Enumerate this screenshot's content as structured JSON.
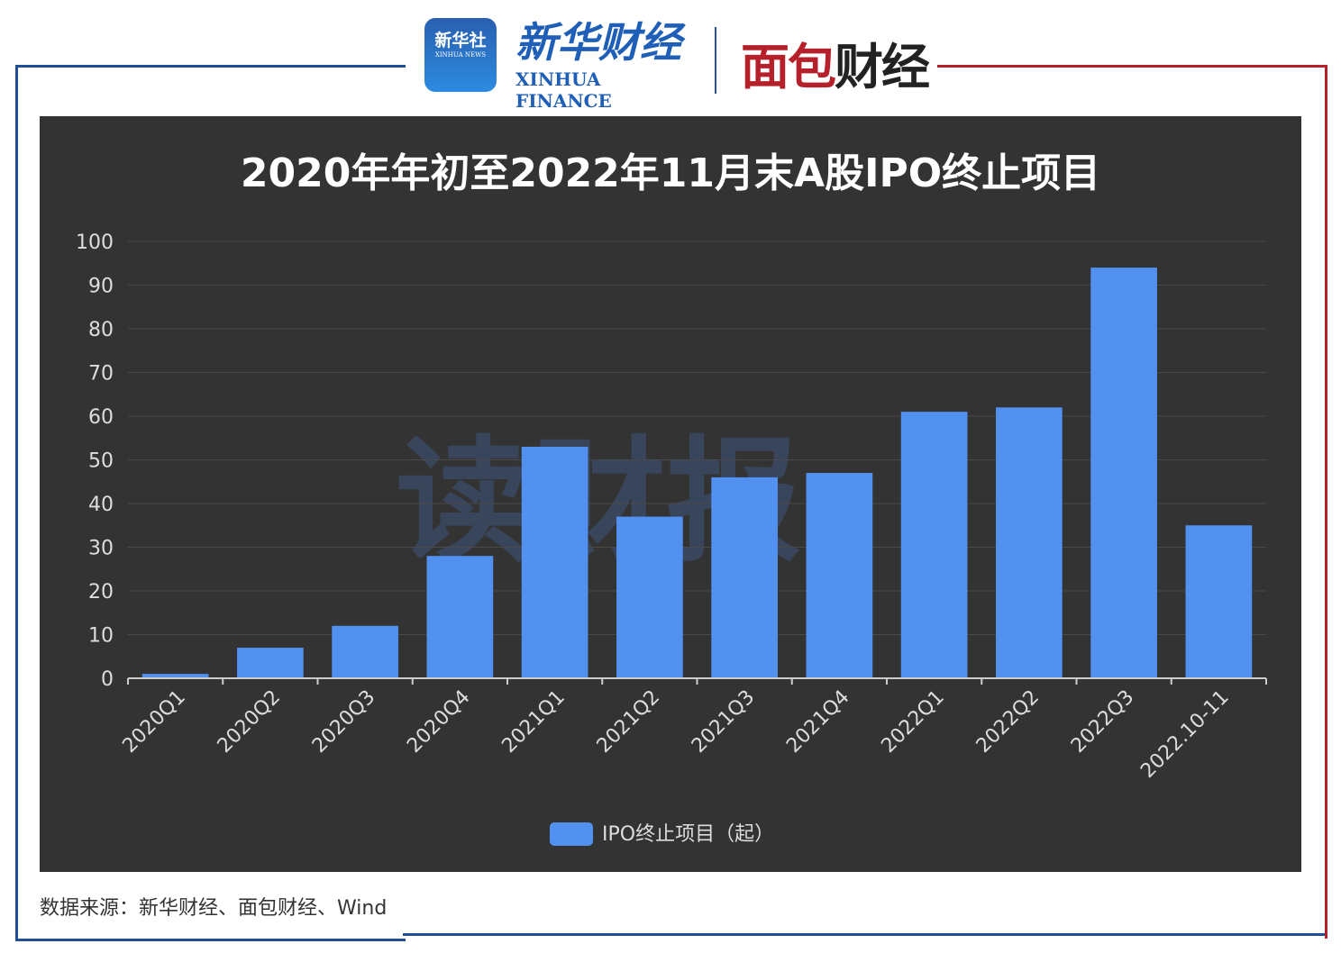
{
  "header": {
    "logo_xinhua_news": "新华社 XINHUA NEWS",
    "logo_xinhua_finance": "新华财经",
    "logo_xinhua_finance_en": "XINHUA FINANCE",
    "logo_mianbao": "面包财经"
  },
  "watermark": "读财报",
  "source": "数据来源：新华财经、面包财经、Wind",
  "colors": {
    "bar": "#5291f0",
    "background": "#333333",
    "frame_left": "#1f4e96",
    "frame_right": "#b5202a"
  },
  "chart_data": {
    "type": "bar",
    "title": "2020年年初至2022年11月末A股IPO终止项目",
    "categories": [
      "2020Q1",
      "2020Q2",
      "2020Q3",
      "2020Q4",
      "2021Q1",
      "2021Q2",
      "2021Q3",
      "2021Q4",
      "2022Q1",
      "2022Q2",
      "2022Q3",
      "2022.10-11"
    ],
    "series": [
      {
        "name": "IPO终止项目（起）",
        "values": [
          1,
          7,
          12,
          28,
          53,
          37,
          46,
          47,
          61,
          62,
          94,
          35
        ]
      }
    ],
    "ylim": [
      0,
      100
    ],
    "yticks": [
      0,
      10,
      20,
      30,
      40,
      50,
      60,
      70,
      80,
      90,
      100
    ],
    "grid": true,
    "legend": "bottom"
  }
}
